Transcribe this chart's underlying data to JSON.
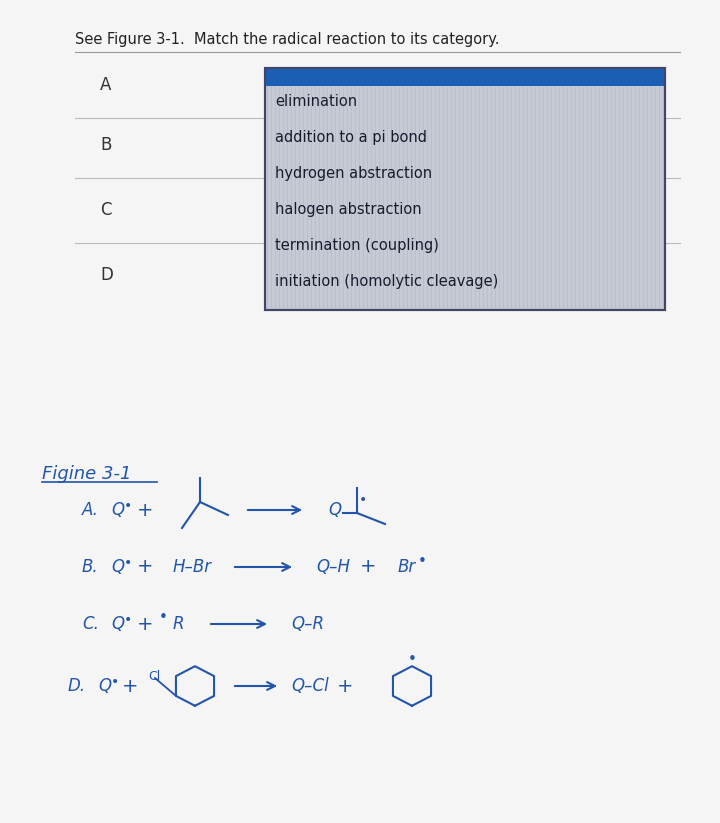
{
  "title": "See Figure 3-1.  Match the radical reaction to its category.",
  "background_color": "#f5f5f5",
  "match_labels": [
    "A",
    "B",
    "C",
    "D"
  ],
  "answer_box_items": [
    "elimination",
    "addition to a pi bond",
    "hydrogen abstraction",
    "halogen abstraction",
    "termination (coupling)",
    "initiation (homolytic cleavage)"
  ],
  "answer_box_bg": "#c8cfd8",
  "answer_box_border_top": "#1a5fb4",
  "answer_box_border": "#555566",
  "figure_label": "Figine 3-1",
  "handwriting_color": "#2255aa",
  "dark_text": "#333333"
}
